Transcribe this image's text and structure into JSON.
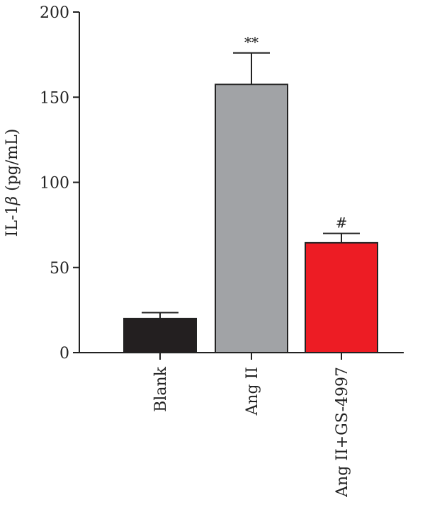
{
  "chart_data": {
    "type": "bar",
    "title": "",
    "xlabel": "",
    "ylabel": "IL-1β (pg/mL)",
    "categories": [
      "Blank",
      "Ang II",
      "Ang II+GS-4997"
    ],
    "values": [
      20,
      157.5,
      64.5
    ],
    "errors": [
      3.5,
      18.5,
      5.5
    ],
    "significance": [
      "",
      "**",
      "#"
    ],
    "colors": [
      "#231f20",
      "#a1a3a6",
      "#ed1c24"
    ],
    "ylim": [
      0,
      200
    ],
    "yticks": [
      0,
      50,
      100,
      150,
      200
    ],
    "grid": false
  }
}
